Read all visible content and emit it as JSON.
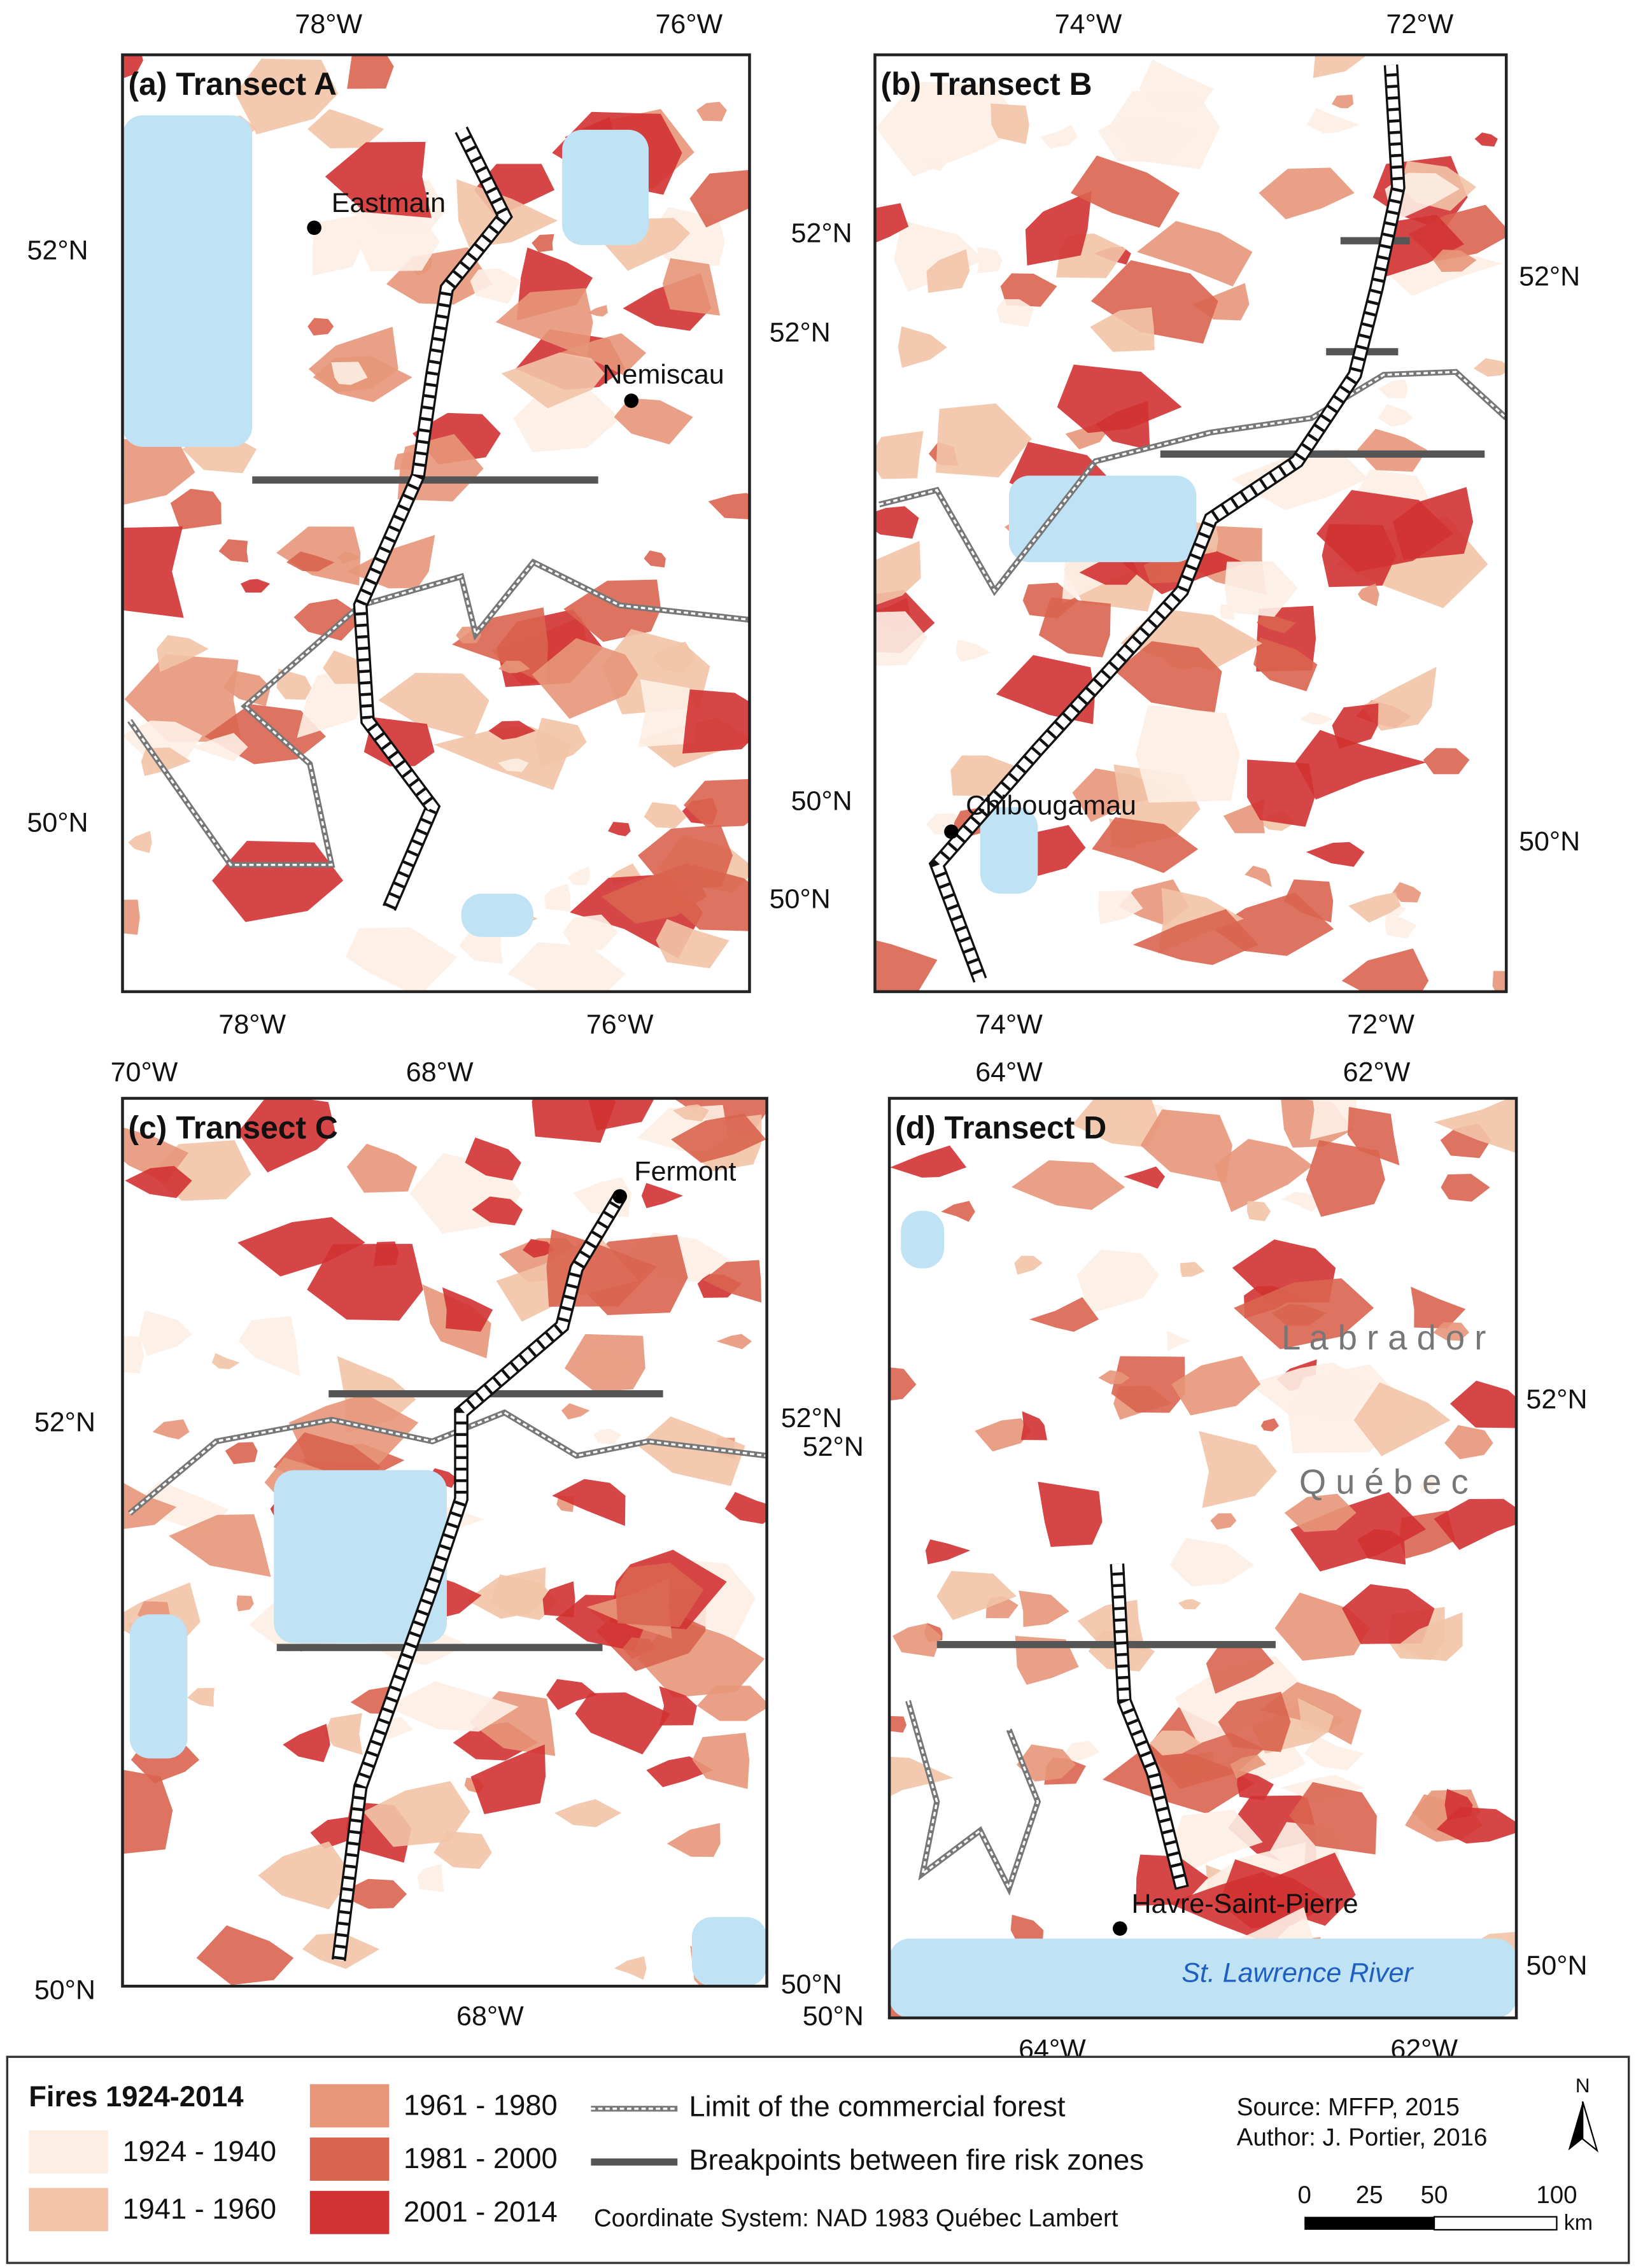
{
  "panels": [
    {
      "title": "(a) Transect A",
      "top_labels": [
        "78°W",
        "76°W"
      ],
      "bottom_labels": [
        "78°W",
        "76°W"
      ],
      "left_labels": [
        "52°N",
        "50°N"
      ],
      "right_labels": [
        "52°N",
        "50°N"
      ],
      "places": [
        "Eastmain",
        "Nemiscau"
      ]
    },
    {
      "title": "(b) Transect B",
      "top_labels": [
        "74°W",
        "72°W"
      ],
      "bottom_labels": [
        "74°W",
        "72°W"
      ],
      "left_labels": [
        "52°N",
        "50°N"
      ],
      "right_labels": [
        "52°N",
        "50°N"
      ],
      "places": [
        "Chibougamau"
      ]
    },
    {
      "title": "(c) Transect C",
      "top_labels": [
        "70°W",
        "68°W"
      ],
      "bottom_labels": [
        "68°W"
      ],
      "left_labels": [
        "52°N",
        "50°N"
      ],
      "right_labels": [
        "52°N",
        "50°N"
      ],
      "places": [
        "Fermont"
      ]
    },
    {
      "title": "(d) Transect D",
      "top_labels": [
        "64°W",
        "62°W"
      ],
      "bottom_labels": [
        "64°W",
        "62°W"
      ],
      "left_labels": [
        "52°N",
        "50°N"
      ],
      "right_labels": [
        "52°N",
        "50°N"
      ],
      "places": [
        "Havre-Saint-Pierre"
      ],
      "regions": [
        "L a b r a d o r",
        "Q u é b e c"
      ],
      "river": "St. Lawrence River"
    }
  ],
  "legend": {
    "title": "Fires 1924-2014",
    "entries": [
      {
        "label": "1924 - 1940",
        "color": "#fdeee4"
      },
      {
        "label": "1941 - 1960",
        "color": "#f2c3a7"
      },
      {
        "label": "1961 - 1980",
        "color": "#e79679"
      },
      {
        "label": "1981 - 2000",
        "color": "#d9644f"
      },
      {
        "label": "2001 - 2014",
        "color": "#d13232"
      }
    ],
    "lines": [
      "Limit of the commercial forest",
      "Breakpoints between fire risk zones"
    ],
    "coordinate_system": "Coordinate System: NAD 1983 Québec Lambert"
  },
  "credits": {
    "source": "Source: MFFP, 2015",
    "author": "Author: J. Portier, 2016"
  },
  "scale_bar": {
    "labels": [
      "0",
      "25",
      "50",
      "100"
    ],
    "unit": "km"
  },
  "north": "N"
}
